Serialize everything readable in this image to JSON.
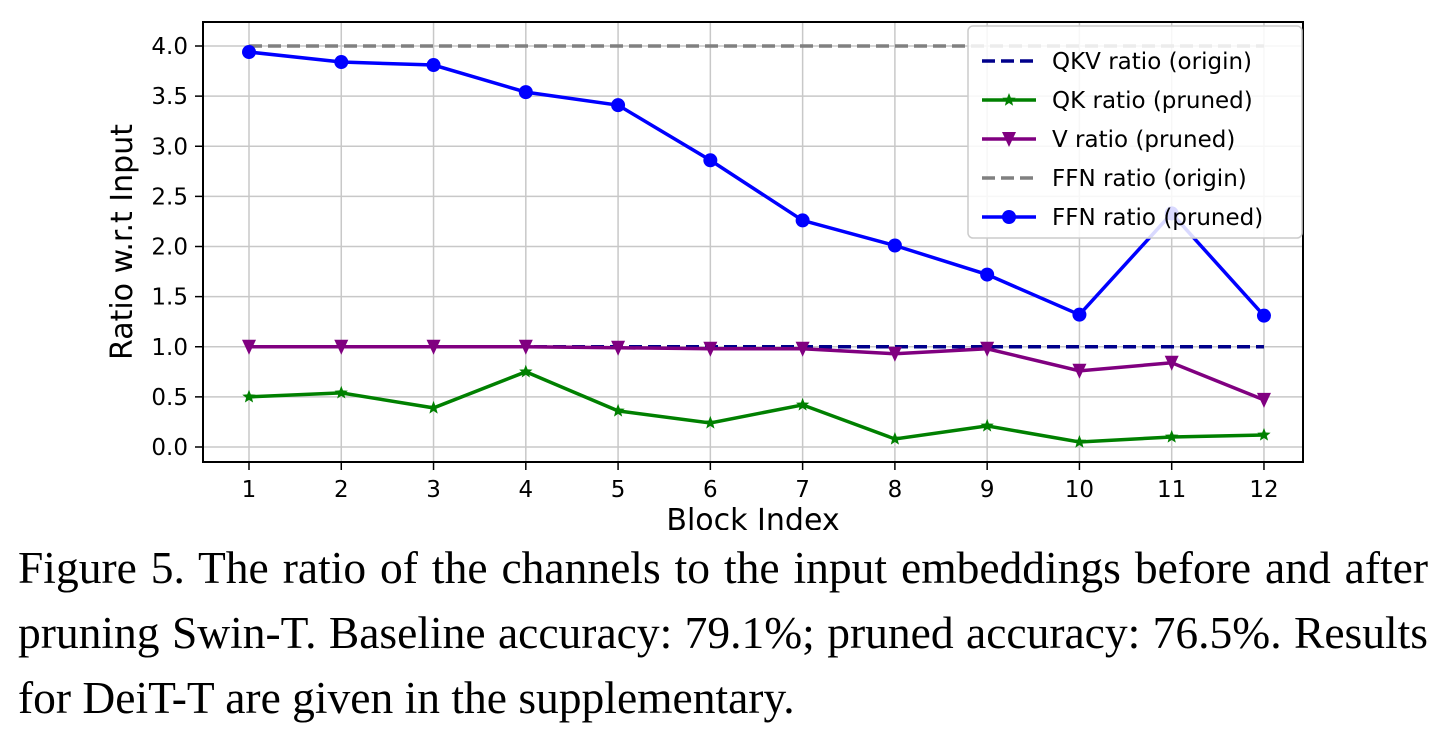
{
  "chart_data": {
    "type": "line",
    "xlabel": "Block Index",
    "ylabel": "Ratio w.r.t Input",
    "x": [
      1,
      2,
      3,
      4,
      5,
      6,
      7,
      8,
      9,
      10,
      11,
      12
    ],
    "xticks": [
      "1",
      "2",
      "3",
      "4",
      "5",
      "6",
      "7",
      "8",
      "9",
      "10",
      "11",
      "12"
    ],
    "yticks": [
      "0.0",
      "0.5",
      "1.0",
      "1.5",
      "2.0",
      "2.5",
      "3.0",
      "3.5",
      "4.0"
    ],
    "ylim": [
      -0.08,
      4.2
    ],
    "xlim": [
      0.5,
      12.5
    ],
    "grid": true,
    "legend_position": "top-right",
    "series": [
      {
        "name": "QKV ratio (origin)",
        "color": "#00008b",
        "style": "dashed",
        "marker": "none",
        "values": [
          1,
          1,
          1,
          1,
          1,
          1,
          1,
          1,
          1,
          1,
          1,
          1
        ]
      },
      {
        "name": "QK ratio (pruned)",
        "color": "#008000",
        "style": "solid",
        "marker": "star",
        "values": [
          0.5,
          0.54,
          0.39,
          0.75,
          0.36,
          0.24,
          0.42,
          0.08,
          0.21,
          0.05,
          0.1,
          0.12
        ]
      },
      {
        "name": "V ratio (pruned)",
        "color": "#800080",
        "style": "solid",
        "marker": "triangle-down",
        "values": [
          1.0,
          1.0,
          1.0,
          1.0,
          0.99,
          0.98,
          0.98,
          0.93,
          0.98,
          0.76,
          0.84,
          0.47
        ]
      },
      {
        "name": "FFN ratio (origin)",
        "color": "#808080",
        "style": "dashed",
        "marker": "none",
        "values": [
          4,
          4,
          4,
          4,
          4,
          4,
          4,
          4,
          4,
          4,
          4,
          4
        ]
      },
      {
        "name": "FFN ratio (pruned)",
        "color": "#0000ff",
        "style": "solid",
        "marker": "circle",
        "values": [
          3.94,
          3.84,
          3.81,
          3.54,
          3.41,
          2.86,
          2.26,
          2.01,
          1.72,
          1.32,
          2.33,
          1.31
        ]
      }
    ]
  },
  "caption": "Figure 5. The ratio of the channels to the input embeddings before and after pruning Swin-T. Baseline accuracy: 79.1%; pruned accuracy: 76.5%. Results for DeiT-T are given in the supplementary."
}
